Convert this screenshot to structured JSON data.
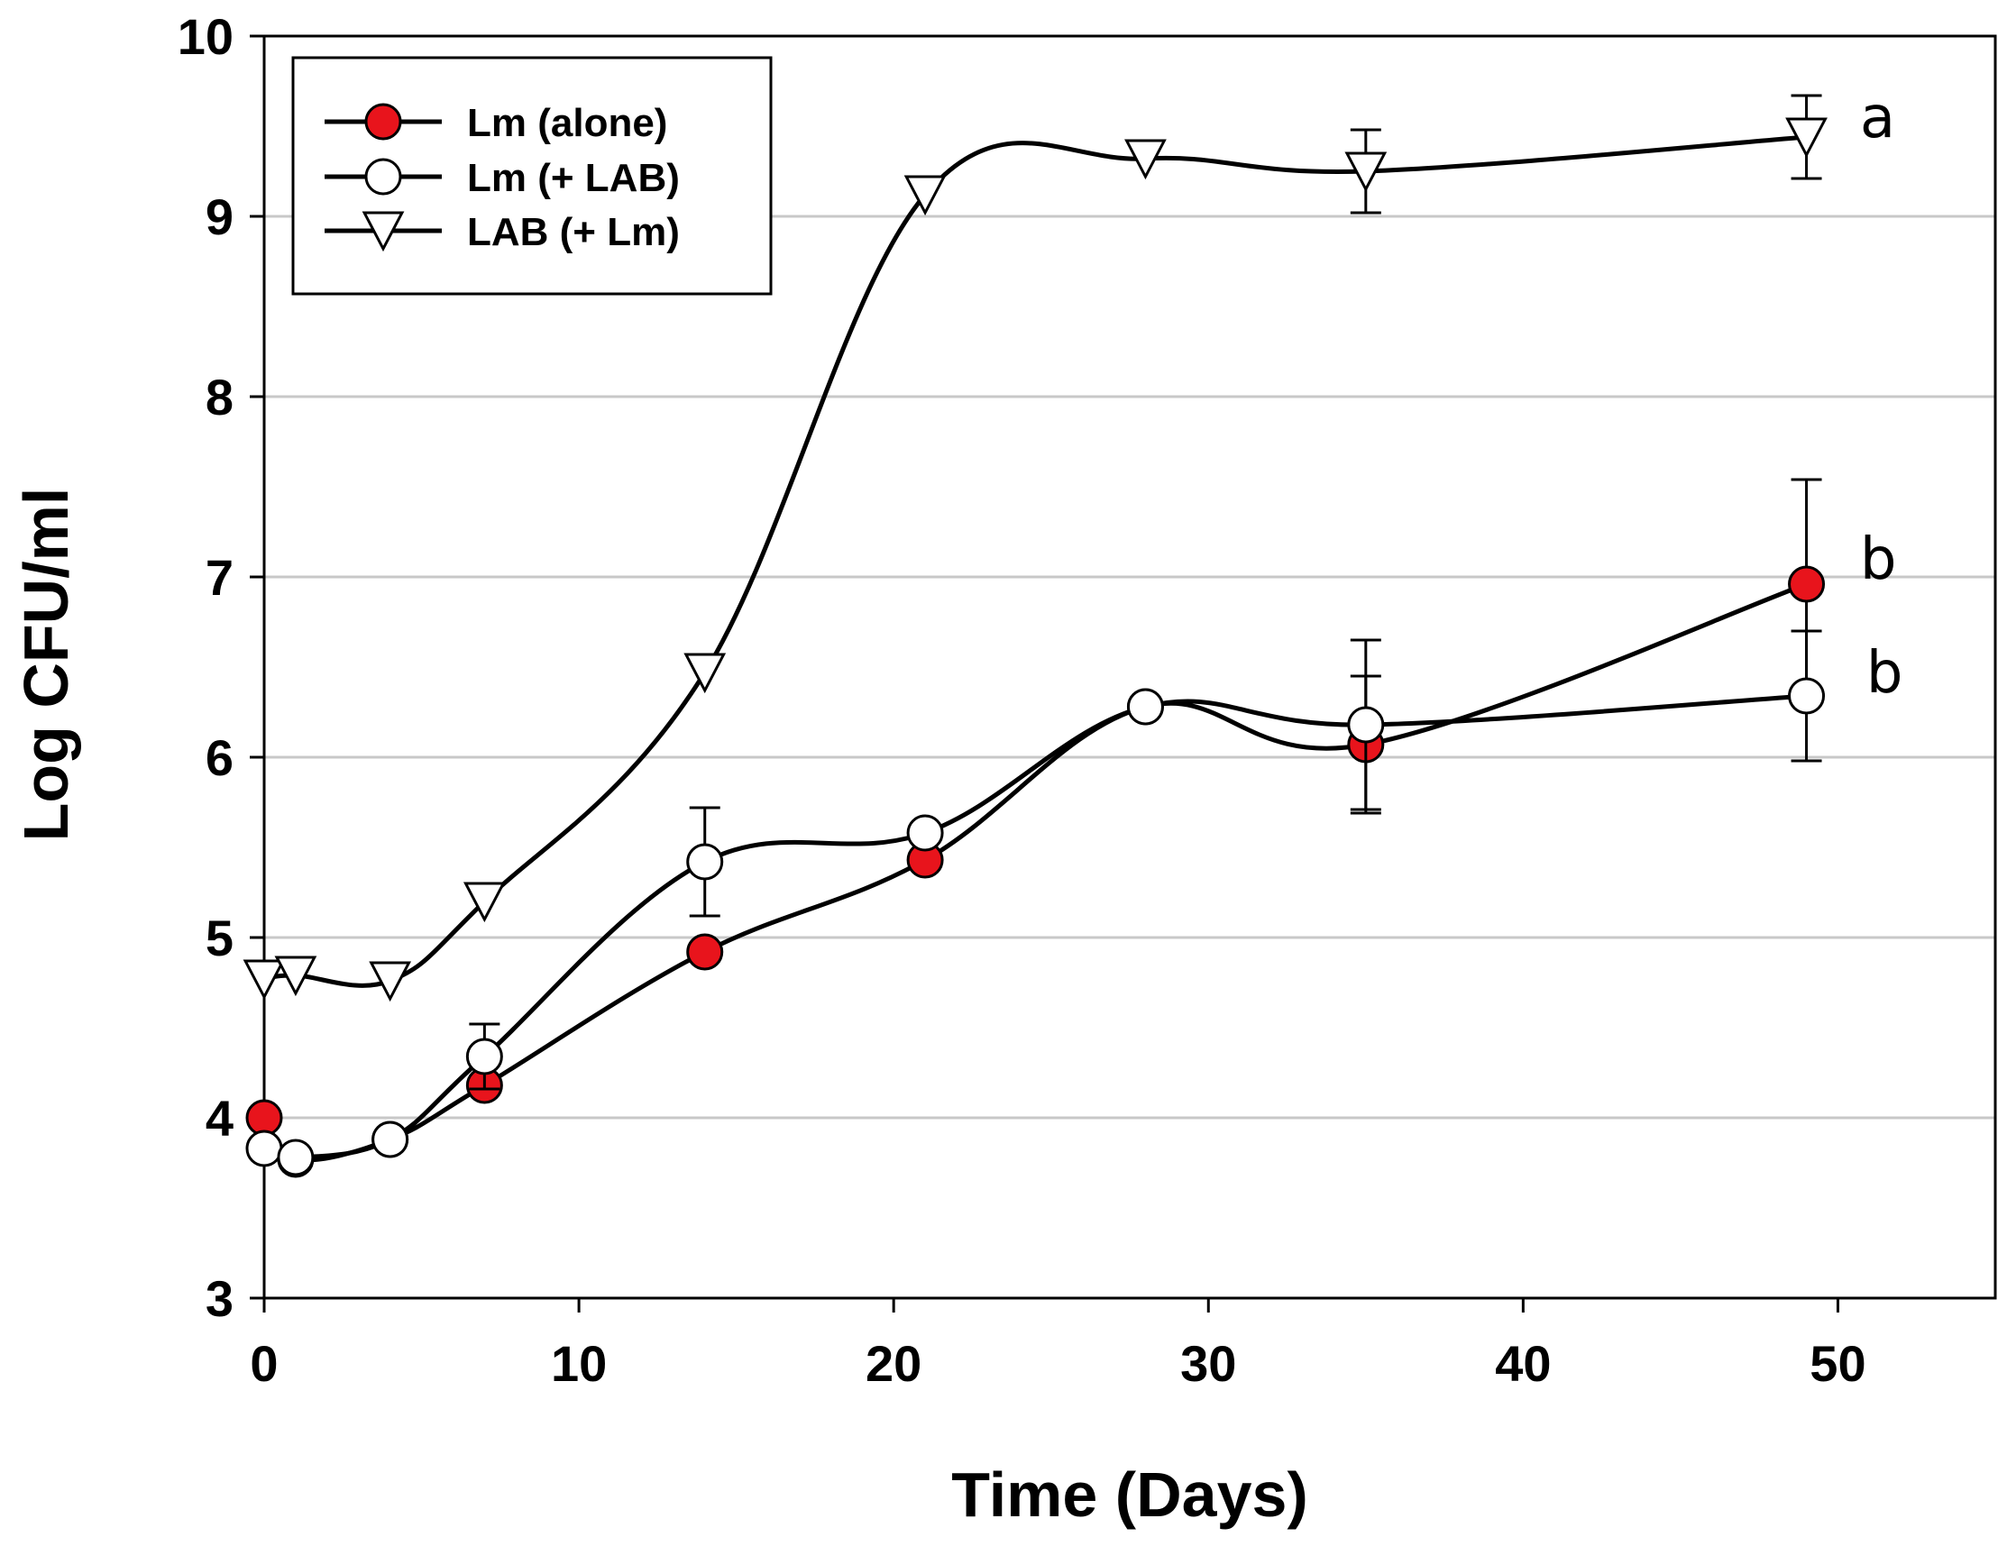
{
  "chart_data": {
    "type": "line",
    "title": "",
    "xlabel": "Time (Days)",
    "ylabel": "Log CFU/ml",
    "xlim": [
      0,
      55
    ],
    "ylim": [
      3,
      10
    ],
    "xticks": [
      0,
      10,
      20,
      30,
      40,
      50
    ],
    "yticks": [
      3,
      4,
      5,
      6,
      7,
      8,
      9,
      10
    ],
    "grid": "horizontal",
    "legend_position": "top-left",
    "series": [
      {
        "name": "Lm (alone)",
        "marker": "filled-circle",
        "fill": "#e8141c",
        "x": [
          0,
          1,
          4,
          7,
          14,
          21,
          28,
          35,
          49
        ],
        "y": [
          4.0,
          3.77,
          3.88,
          4.18,
          4.92,
          5.43,
          6.28,
          6.07,
          6.96
        ],
        "err": [
          0,
          0,
          0,
          0,
          0,
          0,
          0,
          0.38,
          0.58
        ]
      },
      {
        "name": "Lm (+ LAB)",
        "marker": "open-circle",
        "fill": "#ffffff",
        "x": [
          0,
          1,
          4,
          7,
          14,
          21,
          28,
          35,
          49
        ],
        "y": [
          3.83,
          3.78,
          3.88,
          4.34,
          5.42,
          5.58,
          6.28,
          6.18,
          6.34
        ],
        "err": [
          0,
          0,
          0,
          0.18,
          0.3,
          0,
          0,
          0.47,
          0.36
        ]
      },
      {
        "name": "LAB (+ Lm)",
        "marker": "open-triangle-down",
        "fill": "#ffffff",
        "x": [
          0,
          1,
          4,
          7,
          14,
          21,
          28,
          35,
          49
        ],
        "y": [
          4.77,
          4.79,
          4.76,
          5.2,
          6.47,
          9.12,
          9.32,
          9.25,
          9.44
        ],
        "err": [
          0,
          0,
          0,
          0,
          0,
          0,
          0,
          0.23,
          0.23
        ]
      }
    ],
    "annotations": [
      {
        "text": "a",
        "x": 50.7,
        "y": 9.55
      },
      {
        "text": "b",
        "x": 50.7,
        "y": 7.1
      },
      {
        "text": "b",
        "x": 50.9,
        "y": 6.47
      }
    ]
  }
}
